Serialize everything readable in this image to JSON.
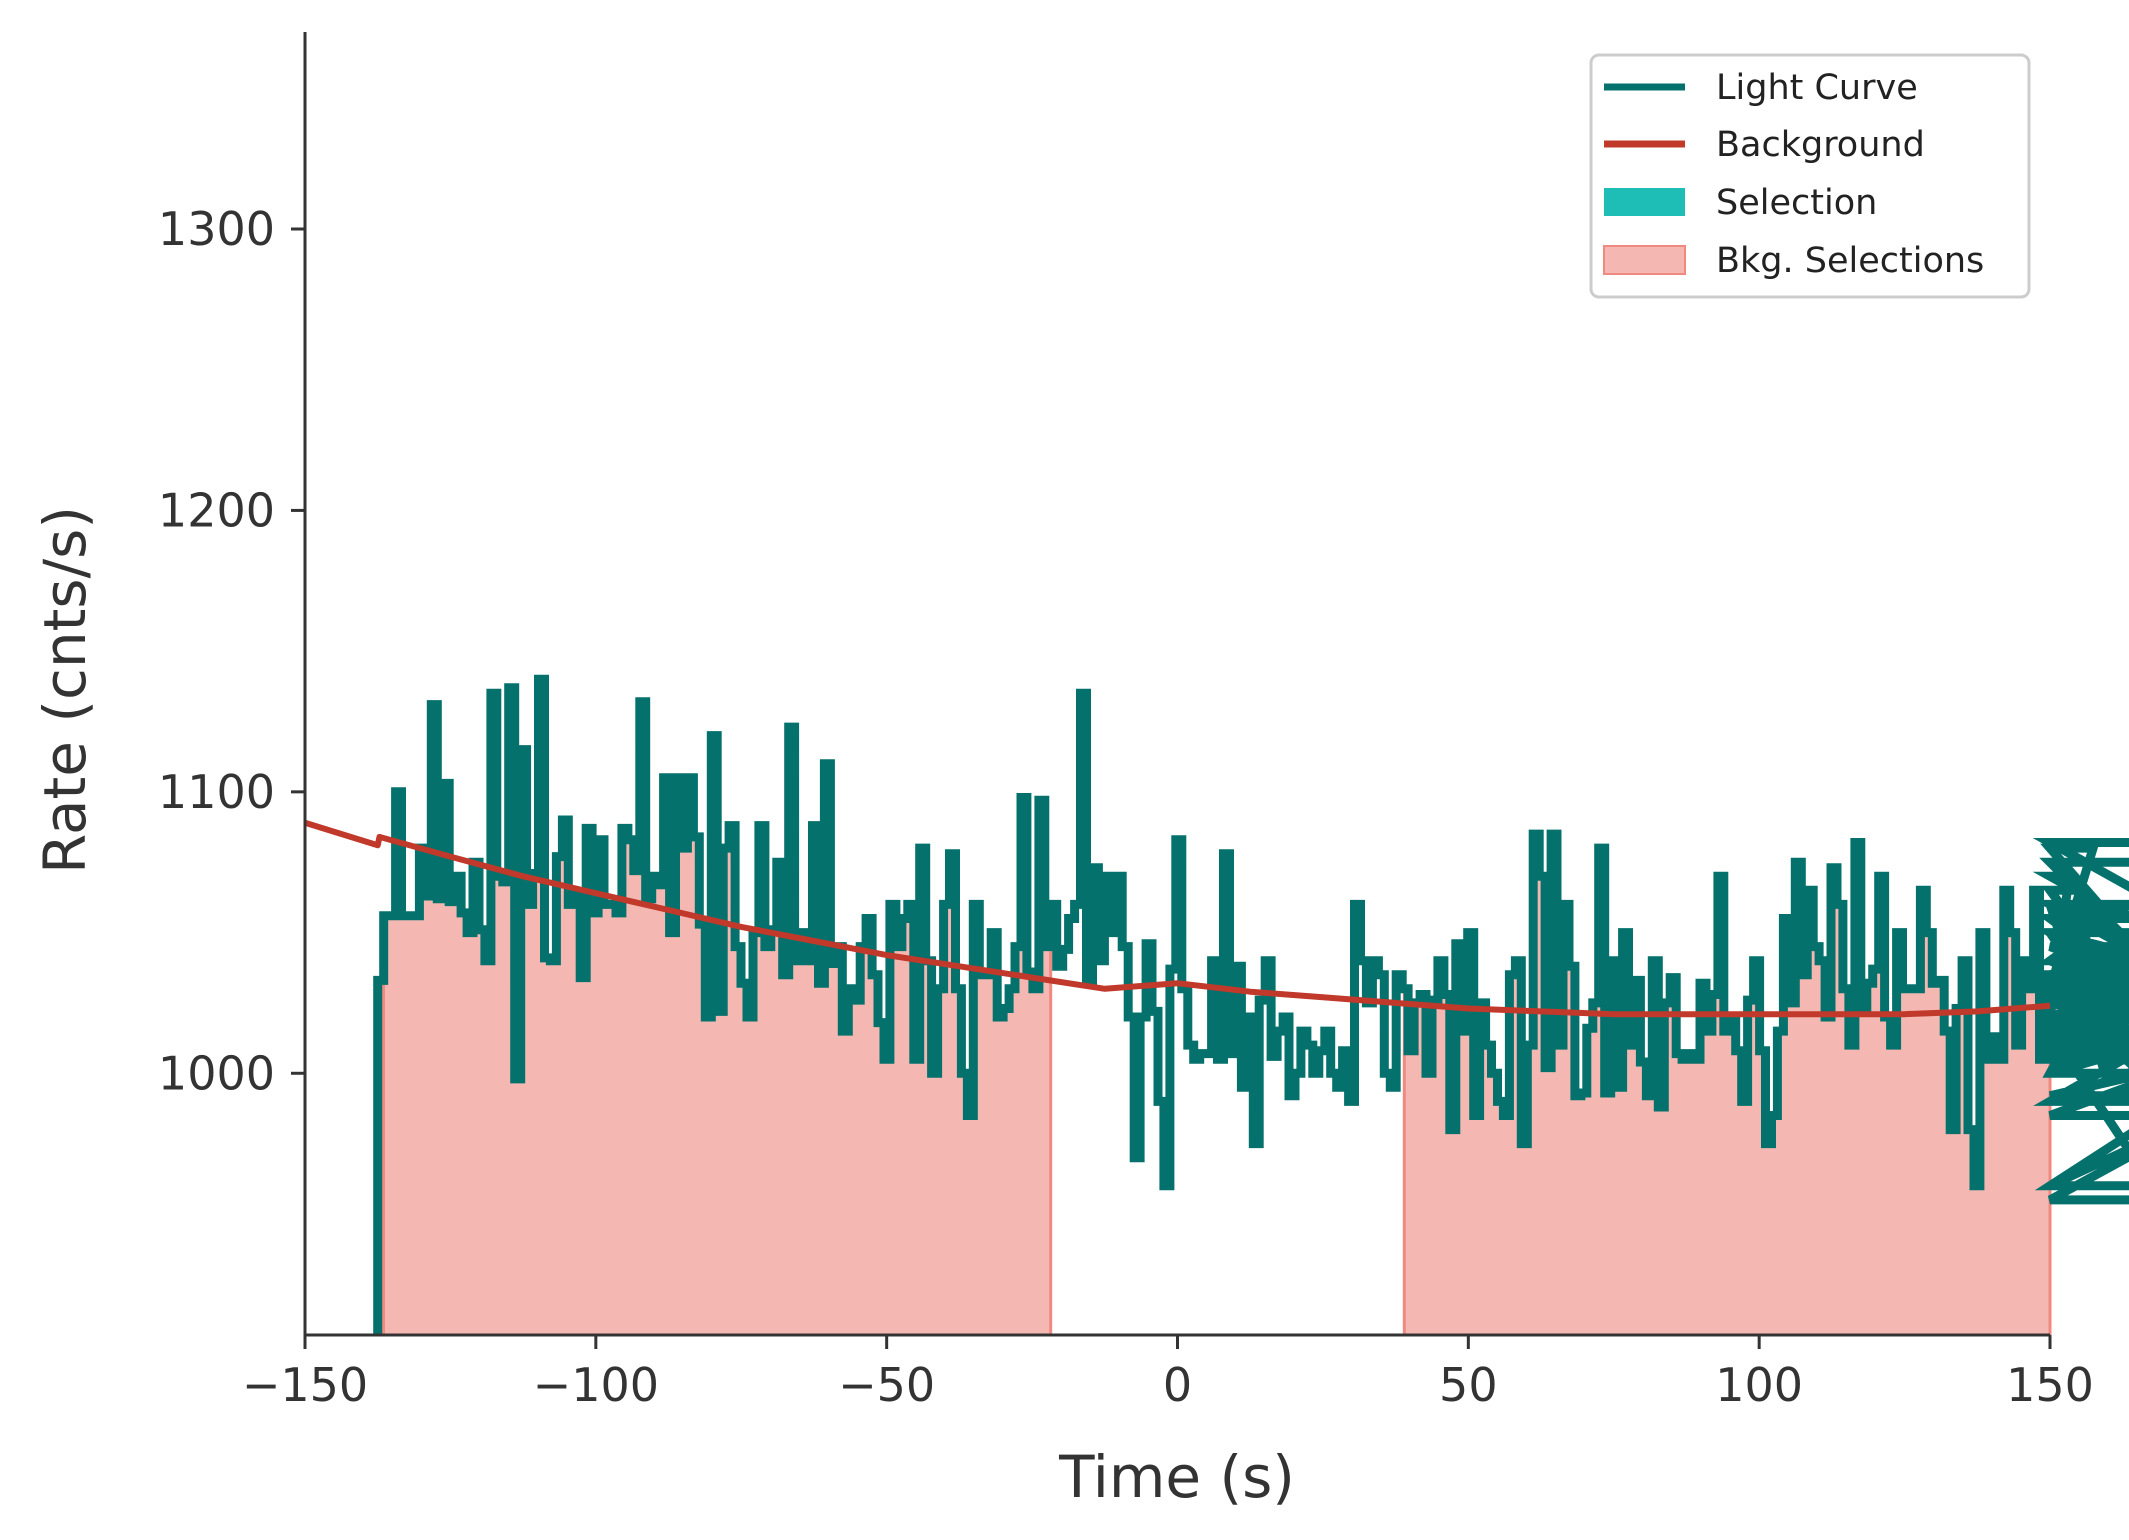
{
  "chart_data": {
    "type": "line",
    "title": "",
    "xlabel": "Time (s)",
    "ylabel": "Rate (cnts/s)",
    "xlim": [
      -150,
      150
    ],
    "ylim": [
      907,
      1370
    ],
    "xticks": [
      -150,
      -100,
      -50,
      0,
      50,
      100,
      150
    ],
    "xtick_labels": [
      "−150",
      "−100",
      "−50",
      "0",
      "50",
      "100",
      "150"
    ],
    "yticks": [
      1000,
      1100,
      1200,
      1300
    ],
    "ytick_labels": [
      "1000",
      "1100",
      "1200",
      "1300"
    ],
    "grid": false,
    "legend_position": "top-right",
    "colors": {
      "light_curve": "#05716c",
      "background": "#c0392b",
      "selection": "#1ebdb5",
      "bkg_selection_fill": "#f5b7b1",
      "bkg_selection_edge": "#f08a80",
      "axis": "#333333"
    },
    "legend": [
      {
        "label": "Light Curve",
        "kind": "line",
        "color": "#05716c"
      },
      {
        "label": "Background",
        "kind": "line",
        "color": "#c0392b"
      },
      {
        "label": "Selection",
        "kind": "patch",
        "color": "#1ebdb5"
      },
      {
        "label": "Bkg. Selections",
        "kind": "patch",
        "color": "#f5b7b1"
      }
    ],
    "light_curve": {
      "bin_width": 1.024,
      "start": -137.5,
      "rates": [
        1033,
        1056,
        1056,
        1100,
        1056,
        1056,
        1056,
        1080,
        1063,
        1131,
        1062,
        1103,
        1061,
        1070,
        1057,
        1050,
        1075,
        1051,
        1040,
        1135,
        1070,
        1068,
        1137,
        998,
        1115,
        1060,
        1071,
        1140,
        1041,
        1040,
        1077,
        1090,
        1060,
        1064,
        1034,
        1087,
        1057,
        1083,
        1060,
        1060,
        1057,
        1087,
        1083,
        1072,
        1132,
        1062,
        1070,
        1067,
        1105,
        1050,
        1105,
        1080,
        1105,
        1084,
        1053,
        1020,
        1120,
        1022,
        1080,
        1088,
        1045,
        1032,
        1020,
        1050,
        1088,
        1045,
        1051,
        1075,
        1035,
        1123,
        1040,
        1050,
        1040,
        1088,
        1032,
        1110,
        1039,
        1045,
        1015,
        1030,
        1026,
        1045,
        1055,
        1035,
        1018,
        1005,
        1060,
        1045,
        1055,
        1060,
        1005,
        1080,
        1040,
        1000,
        1030,
        1060,
        1078,
        1030,
        1000,
        985,
        1060,
        1035,
        1035,
        1050,
        1020,
        1023,
        1030,
        1045,
        1098,
        1036,
        1030,
        1097,
        1045,
        1060,
        1038,
        1044,
        1055,
        1060,
        1135,
        1033,
        1073,
        1040,
        1070,
        1050,
        1070,
        1045,
        1020,
        970,
        1020,
        1046,
        1022,
        990,
        960,
        1037,
        1083,
        1030,
        1010,
        1005,
        1007,
        1007,
        1040,
        1005,
        1078,
        1007,
        1038,
        995,
        1020,
        975,
        1026,
        1040,
        1006,
        1015,
        1020,
        992,
        1000,
        1015,
        1010,
        1000,
        1008,
        1015,
        1000,
        995,
        1008,
        990,
        1060,
        1040,
        1025,
        1040,
        1035,
        1000,
        995,
        1035,
        1030,
        1008,
        1025,
        1028,
        1000,
        1026,
        1040,
        1028,
        980,
        1046,
        1015,
        1050,
        985,
        1025,
        1010,
        1000,
        990,
        985,
        1035,
        1040,
        975,
        1010,
        1085,
        1070,
        1002,
        1085,
        1010,
        1060,
        1038,
        992,
        993,
        1016,
        1025,
        1080,
        993,
        1040,
        995,
        1050,
        1010,
        1033,
        1004,
        992,
        1040,
        988,
        1025,
        1034,
        1007,
        1005,
        1007,
        1005,
        1032,
        1015,
        1028,
        1070,
        1015,
        1020,
        1008,
        990,
        1026,
        1040,
        1008,
        975,
        985,
        1015,
        1055,
        1025,
        1075,
        1035,
        1065,
        1045,
        1040,
        1020,
        1073,
        1060,
        1030,
        1010,
        1082,
        1023,
        1032,
        1037,
        1070,
        1020,
        1010,
        1050,
        1030,
        1030,
        1030,
        1065,
        1050,
        1032,
        1033,
        1015,
        980,
        1023,
        1040,
        980,
        960,
        1050,
        1005,
        1013,
        1005,
        1065,
        1050,
        1010,
        1040,
        1030,
        1065,
        1005,
        1035,
        1007,
        1010,
        1020,
        1070,
        1065,
        1050,
        1030,
        1080,
        1060,
        1000,
        1040,
        1030,
        1040,
        1060,
        1030,
        1000,
        1015,
        960,
        985,
        1000,
        1020,
        1010,
        1035,
        1005,
        1025,
        1010,
        1005,
        1075,
        1015,
        1060,
        1035,
        1020,
        1045,
        1035,
        1060,
        1050,
        1030,
        1015,
        990,
        1020,
        990,
        1040,
        1020,
        1030,
        1010,
        1060,
        1005,
        1015,
        1010,
        1040,
        1025,
        1015,
        1030,
        1045,
        1000,
        1055,
        1055,
        1025,
        1025,
        1055,
        960,
        1020,
        1035,
        1020,
        1010,
        1000,
        1040,
        1050,
        955,
        1035,
        1035,
        1040,
        1030,
        1030,
        1010,
        1082,
        992,
        1030,
        1030,
        1035,
        1040
      ]
    },
    "background": {
      "x": [
        -150,
        -137.5,
        -137.2,
        -125,
        -112.5,
        -100,
        -87.5,
        -75,
        -62.5,
        -50,
        -37.5,
        -25,
        -12.5,
        0,
        12.5,
        25,
        37.5,
        50,
        62.5,
        75,
        87.5,
        100,
        112.5,
        125,
        137.5,
        150
      ],
      "y": [
        1089,
        1081,
        1084,
        1077,
        1070,
        1064,
        1058,
        1052,
        1047,
        1042,
        1038,
        1034,
        1030,
        1032,
        1029,
        1027,
        1025,
        1023,
        1022,
        1021,
        1021,
        1021,
        1021,
        1021,
        1022,
        1024
      ]
    },
    "bkg_selections": [
      [
        -136.5,
        -21.8
      ],
      [
        39,
        150
      ]
    ],
    "selection": []
  }
}
